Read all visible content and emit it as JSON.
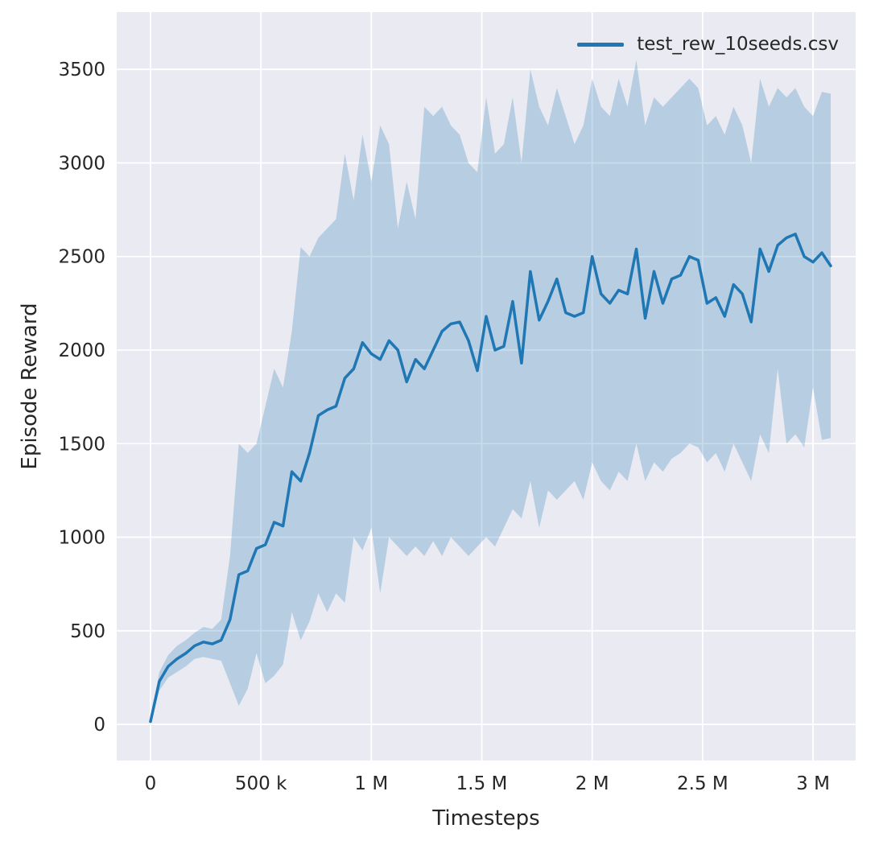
{
  "chart_data": {
    "type": "line",
    "title": "",
    "xlabel": "Timesteps",
    "ylabel": "Episode Reward",
    "series_name": "test_rew_10seeds.csv",
    "legend_position": "upper right",
    "grid": true,
    "xlim": [
      -153000,
      3193000
    ],
    "ylim": [
      -193,
      3806
    ],
    "xticks": {
      "values": [
        0,
        500000,
        1000000,
        1500000,
        2000000,
        2500000,
        3000000
      ],
      "labels": [
        "0",
        "500 k",
        "1 M",
        "1.5 M",
        "2 M",
        "2.5 M",
        "3 M"
      ]
    },
    "yticks": {
      "values": [
        0,
        500,
        1000,
        1500,
        2000,
        2500,
        3000,
        3500
      ],
      "labels": [
        "0",
        "500",
        "1000",
        "1500",
        "2000",
        "2500",
        "3000",
        "3500"
      ]
    },
    "colors": {
      "line": "#1f77b4",
      "band": "#1f77b4",
      "band_opacity": 0.25,
      "plot_bg": "#eaeaf2",
      "grid": "#ffffff",
      "text": "#262626"
    },
    "x": [
      0,
      40000,
      80000,
      120000,
      160000,
      200000,
      240000,
      280000,
      320000,
      360000,
      400000,
      440000,
      480000,
      520000,
      560000,
      600000,
      640000,
      680000,
      720000,
      760000,
      800000,
      840000,
      880000,
      920000,
      960000,
      1000000,
      1040000,
      1080000,
      1120000,
      1160000,
      1200000,
      1240000,
      1280000,
      1320000,
      1360000,
      1400000,
      1440000,
      1480000,
      1520000,
      1560000,
      1600000,
      1640000,
      1680000,
      1720000,
      1760000,
      1800000,
      1840000,
      1880000,
      1920000,
      1960000,
      2000000,
      2040000,
      2080000,
      2120000,
      2160000,
      2200000,
      2240000,
      2280000,
      2320000,
      2360000,
      2400000,
      2440000,
      2480000,
      2520000,
      2560000,
      2600000,
      2640000,
      2680000,
      2720000,
      2760000,
      2800000,
      2840000,
      2880000,
      2920000,
      2960000,
      3000000,
      3040000,
      3080000
    ],
    "mean": [
      15,
      230,
      310,
      350,
      380,
      420,
      440,
      430,
      450,
      560,
      800,
      820,
      940,
      960,
      1080,
      1060,
      1350,
      1300,
      1450,
      1650,
      1680,
      1700,
      1850,
      1900,
      2040,
      1980,
      1950,
      2050,
      2000,
      1830,
      1950,
      1900,
      2000,
      2100,
      2140,
      2150,
      2050,
      1890,
      2180,
      2000,
      2020,
      2260,
      1930,
      2420,
      2160,
      2260,
      2380,
      2200,
      2180,
      2200,
      2500,
      2300,
      2250,
      2320,
      2300,
      2540,
      2170,
      2420,
      2250,
      2380,
      2400,
      2500,
      2480,
      2250,
      2280,
      2180,
      2350,
      2300,
      2150,
      2540,
      2420,
      2560,
      2600,
      2620,
      2500,
      2470,
      2520,
      2450
    ],
    "upper": [
      25,
      280,
      370,
      420,
      450,
      490,
      520,
      510,
      560,
      900,
      1500,
      1450,
      1500,
      1700,
      1900,
      1800,
      2100,
      2550,
      2500,
      2600,
      2650,
      2700,
      3050,
      2800,
      3150,
      2900,
      3200,
      3100,
      2650,
      2900,
      2700,
      3300,
      3250,
      3300,
      3200,
      3150,
      3000,
      2950,
      3350,
      3050,
      3100,
      3350,
      3000,
      3500,
      3300,
      3200,
      3400,
      3250,
      3100,
      3200,
      3450,
      3300,
      3250,
      3450,
      3300,
      3550,
      3200,
      3350,
      3300,
      3350,
      3400,
      3450,
      3400,
      3200,
      3250,
      3150,
      3300,
      3200,
      3000,
      3450,
      3300,
      3400,
      3350,
      3400,
      3300,
      3250,
      3380,
      3370
    ],
    "lower": [
      5,
      180,
      250,
      280,
      310,
      350,
      360,
      350,
      340,
      220,
      100,
      190,
      380,
      220,
      260,
      320,
      600,
      450,
      550,
      700,
      600,
      700,
      650,
      1000,
      930,
      1050,
      700,
      1000,
      950,
      900,
      950,
      900,
      980,
      900,
      1000,
      950,
      900,
      950,
      1000,
      950,
      1050,
      1150,
      1100,
      1300,
      1050,
      1250,
      1200,
      1250,
      1300,
      1200,
      1400,
      1300,
      1250,
      1350,
      1300,
      1500,
      1300,
      1400,
      1350,
      1420,
      1450,
      1500,
      1480,
      1400,
      1450,
      1350,
      1500,
      1400,
      1300,
      1550,
      1450,
      1900,
      1500,
      1550,
      1480,
      1800,
      1520,
      1530
    ]
  }
}
